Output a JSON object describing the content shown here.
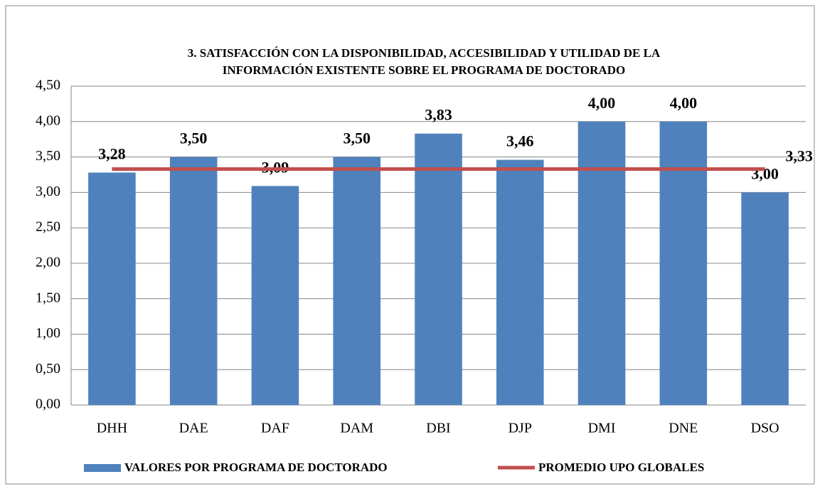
{
  "chart_data": {
    "type": "bar",
    "title": [
      "3. SATISFACCIÓN CON LA DISPONIBILIDAD, ACCESIBILIDAD Y UTILIDAD DE LA",
      "INFORMACIÓN EXISTENTE SOBRE EL PROGRAMA DE DOCTORADO"
    ],
    "categories": [
      "DHH",
      "DAE",
      "DAF",
      "DAM",
      "DBI",
      "DJP",
      "DMI",
      "DNE",
      "DSO"
    ],
    "series": [
      {
        "name": "VALORES POR PROGRAMA DE DOCTORADO",
        "type": "bar",
        "color": "#4f81bd",
        "values": [
          3.28,
          3.5,
          3.09,
          3.5,
          3.83,
          3.46,
          4.0,
          4.0,
          3.0
        ],
        "value_labels": [
          "3,28",
          "3,50",
          "3,09",
          "3,50",
          "3,83",
          "3,46",
          "4,00",
          "4,00",
          "3,00"
        ]
      },
      {
        "name": "PROMEDIO UPO GLOBALES",
        "type": "line",
        "color": "#c0504d",
        "values": [
          3.33,
          3.33,
          3.33,
          3.33,
          3.33,
          3.33,
          3.33,
          3.33,
          3.33
        ],
        "value_labels": [
          null,
          null,
          null,
          null,
          null,
          null,
          null,
          null,
          "3,33"
        ]
      }
    ],
    "ylim": [
      0,
      4.5
    ],
    "yticks": [
      {
        "value": 0,
        "label": "0,00"
      },
      {
        "value": 0.5,
        "label": "0,50"
      },
      {
        "value": 1,
        "label": "1,00"
      },
      {
        "value": 1.5,
        "label": "1,50"
      },
      {
        "value": 2,
        "label": "2,00"
      },
      {
        "value": 2.5,
        "label": "2,50"
      },
      {
        "value": 3,
        "label": "3,00"
      },
      {
        "value": 3.5,
        "label": "3,50"
      },
      {
        "value": 4,
        "label": "4,00"
      },
      {
        "value": 4.5,
        "label": "4,50"
      }
    ],
    "grid": true,
    "legend": "bottom"
  }
}
